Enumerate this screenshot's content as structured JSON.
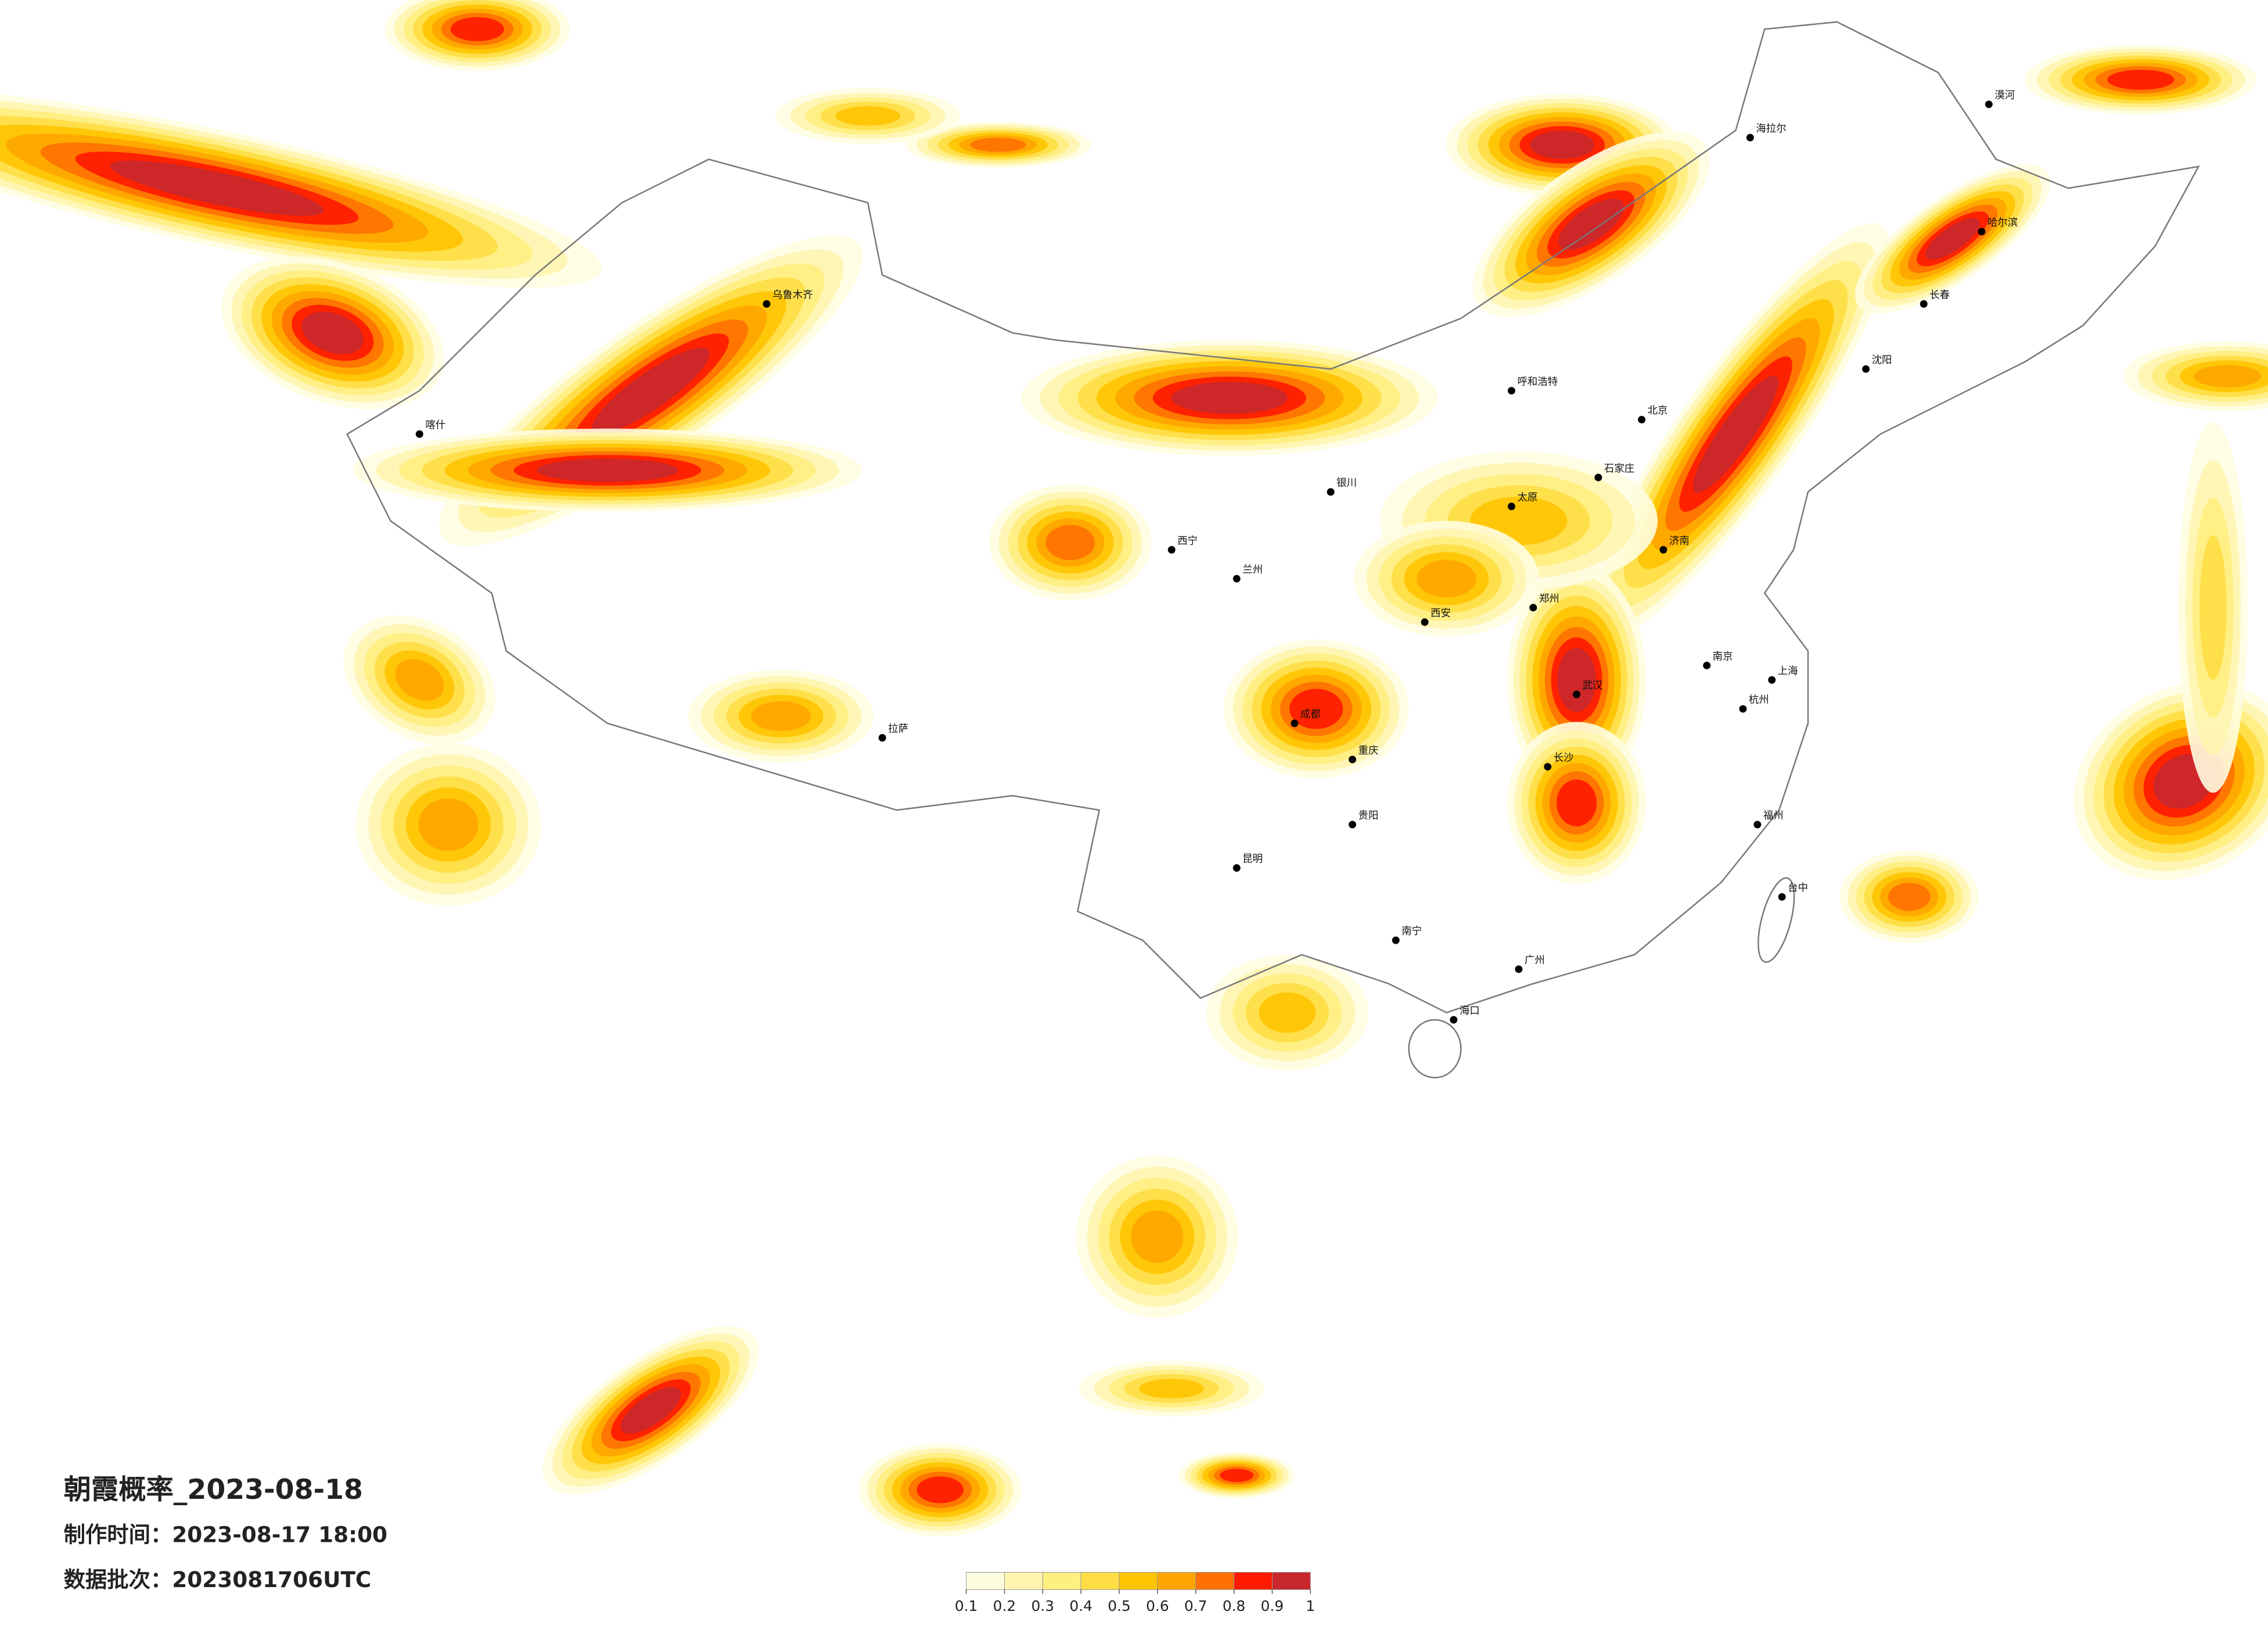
{
  "title": "朝霞概率_2023-08-18",
  "made_time": "制作时间：2023-08-17 18:00",
  "batch": "数据批次：2023081706UTC",
  "colorbar": {
    "ticks": [
      0.1,
      0.2,
      0.3,
      0.4,
      0.5,
      0.6,
      0.7,
      0.8,
      0.9,
      1
    ],
    "colors": [
      "#fffde0",
      "#fff5b0",
      "#ffee80",
      "#ffdd44",
      "#ffc400",
      "#ffa500",
      "#ff7000",
      "#ff1a00",
      "#c8282d"
    ]
  },
  "cities": [
    "北京",
    "上海",
    "广州",
    "武汉",
    "成都",
    "重庆",
    "西安",
    "拉萨",
    "乌鲁木齐",
    "哈尔滨",
    "长春",
    "沈阳",
    "呼和浩特",
    "兰州",
    "西宁",
    "昆明",
    "贵阳",
    "南宁",
    "海口",
    "福州",
    "杭州",
    "南京",
    "郑州",
    "长沙",
    "济南",
    "太原",
    "石家庄",
    "银川",
    "台中",
    "喀什",
    "海拉尔",
    "漠河"
  ]
}
